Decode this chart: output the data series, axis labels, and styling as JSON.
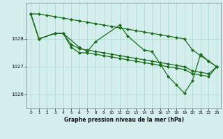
{
  "xlabel": "Graphe pression niveau de la mer (hPa)",
  "bg_color": "#d4eeee",
  "grid_color": "#a8d8cc",
  "line_color": "#1a6b1a",
  "ylim": [
    1025.5,
    1029.3
  ],
  "yticks": [
    1026,
    1027,
    1028
  ],
  "xlim": [
    -0.5,
    23.5
  ],
  "markersize": 2.5,
  "linewidth": 0.9,
  "top_line": [
    1028.9,
    1028.9,
    1028.85,
    1028.8,
    1028.75,
    1028.7,
    1028.65,
    1028.6,
    1028.55,
    1028.5,
    1028.45,
    1028.4,
    1028.35,
    1028.3,
    1028.25,
    1028.2,
    1028.15,
    1028.1,
    1028.05,
    1028.0,
    1027.6,
    1027.4,
    1027.2,
    1027.0
  ],
  "upper_mid_x": [
    0,
    1,
    3,
    4,
    5,
    6,
    7,
    8,
    9,
    10,
    11,
    12,
    13,
    14,
    15,
    16,
    17,
    18,
    19,
    20,
    21,
    22,
    23
  ],
  "upper_mid_y": [
    1028.9,
    1028.0,
    1028.2,
    1028.2,
    1027.8,
    1027.65,
    1027.6,
    1027.55,
    1027.5,
    1027.45,
    1027.4,
    1027.35,
    1027.3,
    1027.25,
    1027.2,
    1027.15,
    1027.1,
    1027.05,
    1027.0,
    1026.85,
    1026.8,
    1026.75,
    1027.0
  ],
  "lower_mid_x": [
    0,
    1,
    3,
    4,
    5,
    6,
    7,
    8,
    9,
    10,
    11,
    12,
    13,
    14,
    15,
    16,
    17,
    18,
    19,
    20,
    21,
    22,
    23
  ],
  "lower_mid_y": [
    1028.9,
    1028.0,
    1028.2,
    1028.2,
    1027.7,
    1027.5,
    1027.5,
    1027.45,
    1027.4,
    1027.35,
    1027.3,
    1027.25,
    1027.2,
    1027.15,
    1027.1,
    1027.05,
    1027.0,
    1026.95,
    1026.9,
    1026.75,
    1026.7,
    1026.65,
    1027.0
  ],
  "zigzag_x": [
    0,
    1,
    3,
    4,
    6,
    7,
    8,
    11,
    12,
    14,
    15,
    16,
    17,
    18,
    19,
    20,
    21,
    22,
    23
  ],
  "zigzag_y": [
    1028.9,
    1028.0,
    1028.2,
    1028.2,
    1027.7,
    1027.55,
    1027.9,
    1028.5,
    1028.1,
    1027.6,
    1027.55,
    1027.1,
    1026.65,
    1026.35,
    1026.05,
    1026.5,
    1027.45,
    1027.2,
    1027.0
  ]
}
